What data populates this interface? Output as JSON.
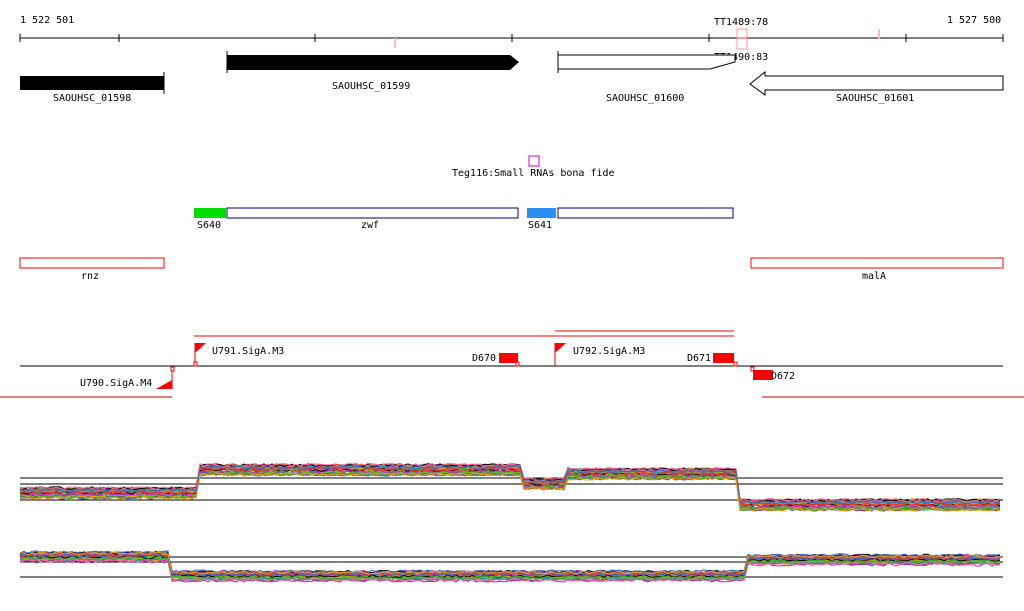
{
  "ruler": {
    "start": "1 522 501",
    "end": "1 527 500"
  },
  "terminators": [
    "TT1489:78",
    "TT1490:83"
  ],
  "genes": [
    "SAOUHSC_01598",
    "SAOUHSC_01599",
    "SAOUHSC_01600",
    "SAOUHSC_01601"
  ],
  "srna": {
    "label": "Teg116:Small RNAs bona fide"
  },
  "segments": {
    "s640": "S640",
    "zwf": "zwf",
    "s641": "S641"
  },
  "operons": {
    "rnz": "rnz",
    "malA": "malA"
  },
  "promoters": {
    "u790": "U790.SigA.M4",
    "u791": "U791.SigA.M3",
    "u792": "U792.SigA.M3"
  },
  "downstream": {
    "d670": "D670",
    "d671": "D671",
    "d672": "D672"
  },
  "colors": {
    "red": "#ff0000",
    "green": "#00dd00",
    "blue": "#2a8ff0",
    "magenta": "#cc00cc"
  }
}
